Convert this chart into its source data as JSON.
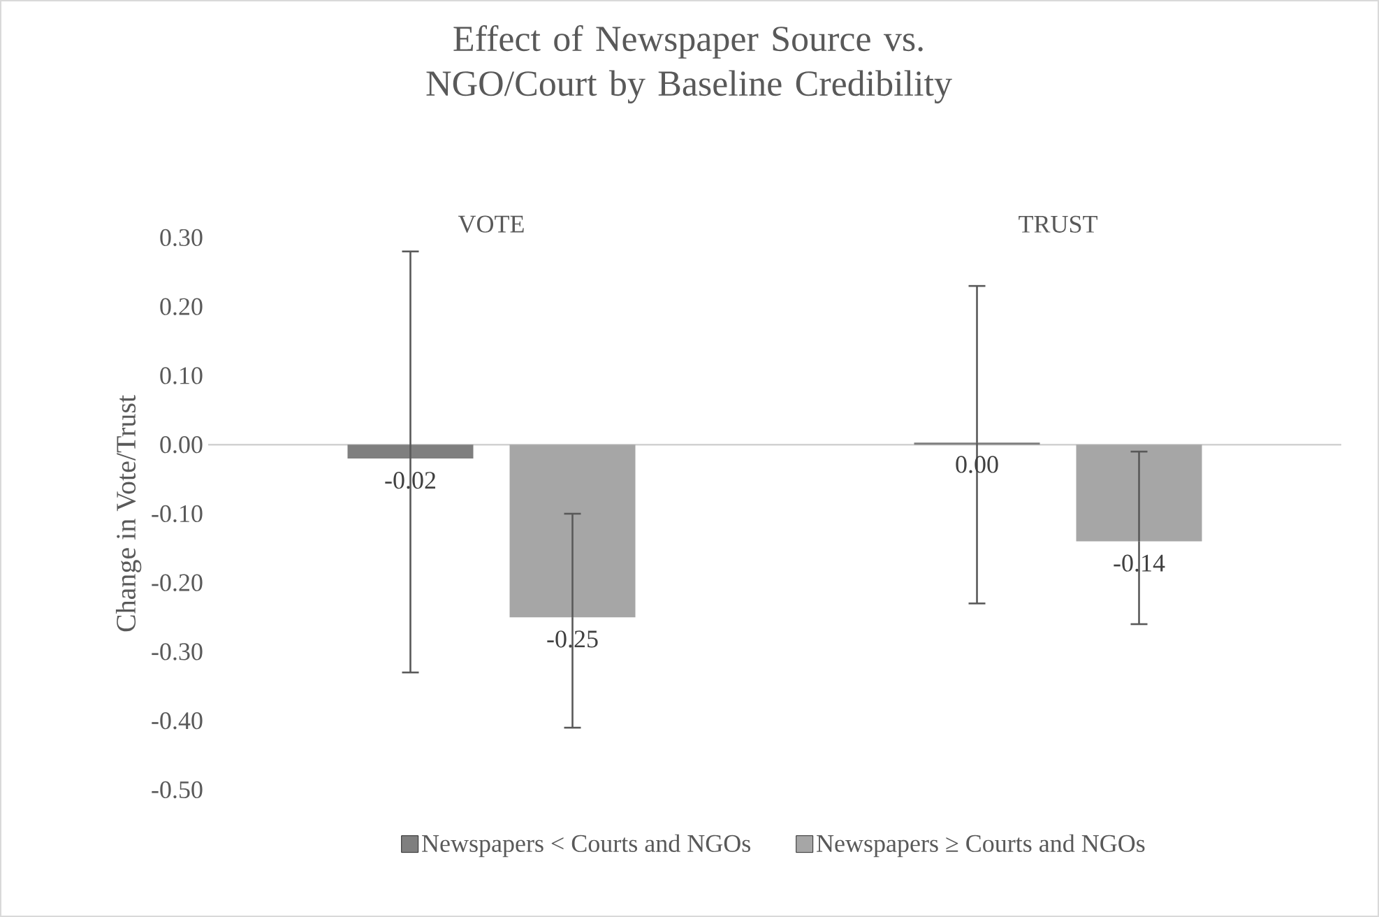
{
  "chart_data": {
    "type": "bar",
    "title": "Effect of Newspaper Source vs. NGO/Court by Baseline Credibility",
    "ylabel": "Change in Vote/Trust",
    "categories": [
      "VOTE",
      "TRUST"
    ],
    "ylim": [
      -0.5,
      0.3
    ],
    "yticks": [
      {
        "value": 0.3,
        "label": "0.30"
      },
      {
        "value": 0.2,
        "label": "0.20"
      },
      {
        "value": 0.1,
        "label": "0.10"
      },
      {
        "value": 0,
        "label": "0.00"
      },
      {
        "value": -0.1,
        "label": "-0.10"
      },
      {
        "value": -0.2,
        "label": "-0.20"
      },
      {
        "value": -0.3,
        "label": "-0.30"
      },
      {
        "value": -0.4,
        "label": "-0.40"
      },
      {
        "value": -0.5,
        "label": "-0.50"
      }
    ],
    "legend": "bottom",
    "series": [
      {
        "name": "Newspapers < Courts and NGOs",
        "color": "#7f7f7f",
        "values": [
          -0.02,
          0.003
        ],
        "errors": [
          [
            -0.33,
            0.28
          ],
          [
            -0.23,
            0.23
          ]
        ],
        "value_labels": [
          "-0.02",
          "0.00"
        ]
      },
      {
        "name": "Newspapers ≥ Courts and NGOs",
        "color": "#a6a6a6",
        "values": [
          -0.25,
          -0.14
        ],
        "errors": [
          [
            -0.41,
            -0.1
          ],
          [
            -0.26,
            -0.01
          ]
        ],
        "value_labels": [
          "-0.25",
          "-0.14"
        ]
      }
    ]
  }
}
